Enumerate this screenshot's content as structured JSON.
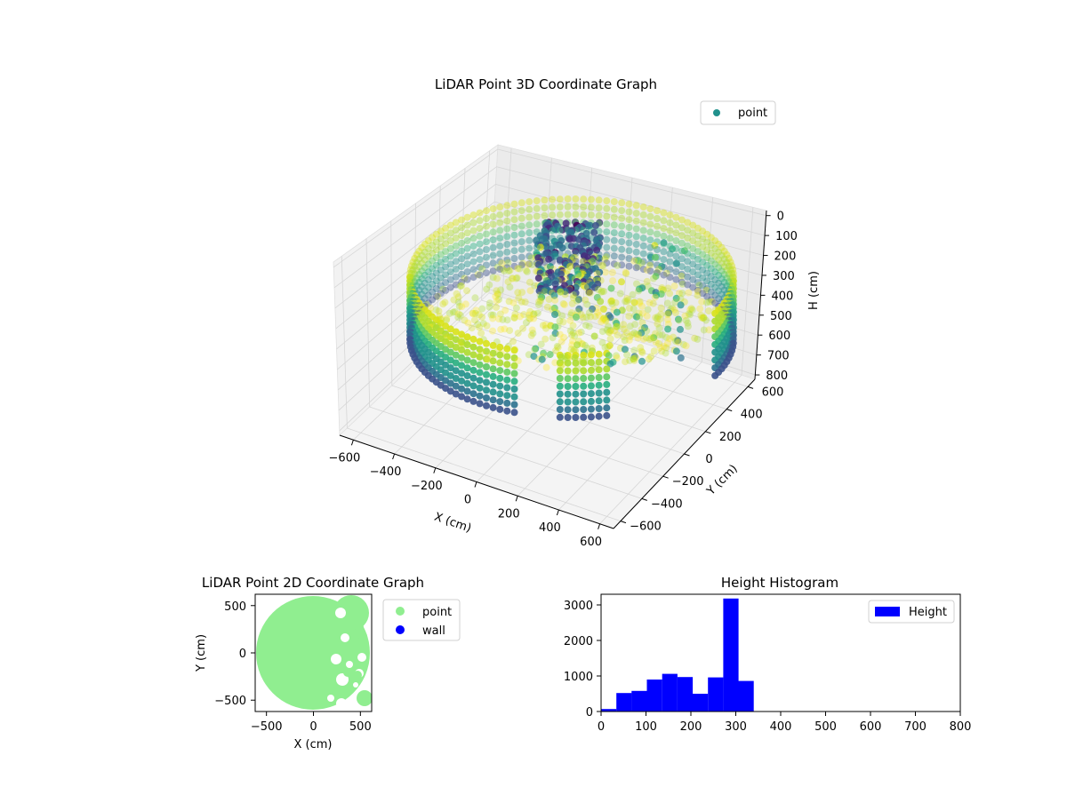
{
  "charts": {
    "chart3d": {
      "title": "LiDAR Point 3D Coordinate Graph",
      "xlabel": "X (cm)",
      "ylabel": "Y (cm)",
      "zlabel": "H (cm)",
      "legend": "point",
      "marker_color": "#21918c",
      "x_ticks": [
        "−600",
        "−400",
        "−200",
        "0",
        "200",
        "400",
        "600"
      ],
      "y_ticks": [
        "600",
        "400",
        "200",
        "0",
        "−200",
        "−400",
        "−600"
      ],
      "z_ticks": [
        "0",
        "100",
        "200",
        "300",
        "400",
        "500",
        "600",
        "700",
        "800"
      ]
    },
    "chart2d": {
      "title": "LiDAR Point 2D Coordinate Graph",
      "xlabel": "X (cm)",
      "ylabel": "Y (cm)",
      "legend_point": "point",
      "legend_wall": "wall",
      "point_color": "#90ee90",
      "wall_color": "#0000ff",
      "x_ticks": [
        "−500",
        "0",
        "500"
      ],
      "y_ticks": [
        "500",
        "0",
        "−500"
      ]
    },
    "hist": {
      "title": "Height Histogram",
      "legend": "Height",
      "bar_color": "#0000ff",
      "x_ticks": [
        "0",
        "100",
        "200",
        "300",
        "400",
        "500",
        "600",
        "700",
        "800"
      ],
      "y_ticks": [
        "0",
        "1000",
        "2000",
        "3000"
      ]
    }
  },
  "chart_data": [
    {
      "type": "scatter",
      "title": "LiDAR Point 3D Coordinate Graph",
      "xlabel": "X (cm)",
      "ylabel": "Y (cm)",
      "zlabel": "H (cm)",
      "xlim": [
        -600,
        600
      ],
      "ylim": [
        -600,
        600
      ],
      "zlim": [
        0,
        800
      ],
      "z_axis_inverted": true,
      "series": [
        {
          "name": "point",
          "colormap": "viridis"
        }
      ],
      "legend_position": "top-right",
      "grid": true
    },
    {
      "type": "scatter",
      "title": "LiDAR Point 2D Coordinate Graph",
      "xlabel": "X (cm)",
      "ylabel": "Y (cm)",
      "xlim": [
        -600,
        600
      ],
      "ylim": [
        -600,
        600
      ],
      "series": [
        {
          "name": "point",
          "color": "#90ee90"
        },
        {
          "name": "wall",
          "color": "#0000ff"
        }
      ],
      "legend_position": "outside-right",
      "grid": false
    },
    {
      "type": "bar",
      "title": "Height Histogram",
      "xlabel": "",
      "ylabel": "",
      "xlim": [
        0,
        800
      ],
      "ylim": [
        0,
        3300
      ],
      "bin_edges": [
        0,
        34,
        68,
        102,
        136,
        170,
        204,
        238,
        272,
        306,
        340
      ],
      "series": [
        {
          "name": "Height",
          "values": [
            70,
            520,
            580,
            900,
            1060,
            970,
            500,
            960,
            3180,
            860
          ]
        }
      ],
      "legend_position": "top-right",
      "grid": false
    }
  ]
}
